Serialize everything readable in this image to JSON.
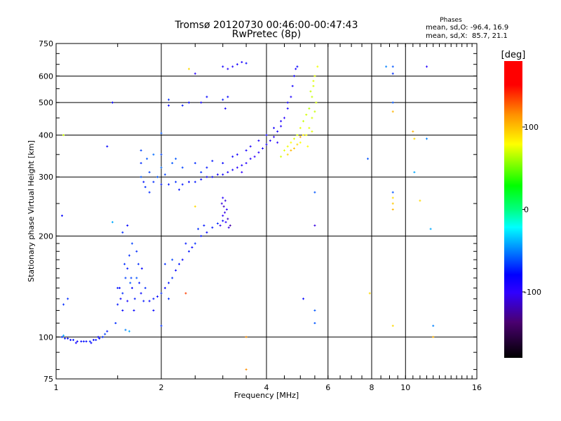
{
  "chart_data": {
    "type": "scatter",
    "title": "Tromsø 20120730 00:46:00-00:47:43",
    "subtitle": "RwPretec (8p)",
    "stats": {
      "heading": "Phases",
      "o_line": "mean, sd,O: -96.4, 16.9",
      "x_line": "mean, sd,X:  85.7, 21.1"
    },
    "xlabel": "Frequency [MHz]",
    "ylabel": "Stationary phase Virtual Height [km]",
    "xscale": "log",
    "yscale": "log",
    "xlim": [
      1,
      16
    ],
    "ylim": [
      75,
      750
    ],
    "xticks": [
      "1",
      "2",
      "4",
      "6",
      "8",
      "10",
      "16"
    ],
    "xtick_values": [
      1,
      2,
      4,
      6,
      8,
      10,
      16
    ],
    "yticks": [
      "75",
      "100",
      "200",
      "300",
      "400",
      "500",
      "600",
      "750"
    ],
    "ytick_values": [
      75,
      100,
      200,
      300,
      400,
      500,
      600,
      750
    ],
    "grid": true,
    "colorbar": {
      "label": "[deg]",
      "range": [
        -180,
        180
      ],
      "ticks": [
        "100",
        "0",
        "-100"
      ],
      "tick_values": [
        100,
        0,
        -100
      ]
    },
    "point_format": [
      "frequency_MHz",
      "height_km",
      "phase_deg"
    ],
    "points": [
      [
        1.04,
        100,
        -90
      ],
      [
        1.06,
        99,
        -95
      ],
      [
        1.08,
        99,
        -100
      ],
      [
        1.1,
        98,
        -100
      ],
      [
        1.12,
        98,
        -95
      ],
      [
        1.15,
        97,
        -105
      ],
      [
        1.18,
        97,
        -100
      ],
      [
        1.2,
        97,
        -95
      ],
      [
        1.22,
        97,
        -100
      ],
      [
        1.25,
        97,
        -90
      ],
      [
        1.28,
        98,
        -100
      ],
      [
        1.3,
        98,
        -95
      ],
      [
        1.33,
        99,
        -100
      ],
      [
        1.36,
        100,
        -90
      ],
      [
        1.38,
        102,
        -85
      ],
      [
        1.4,
        104,
        -95
      ],
      [
        1.05,
        101,
        -60
      ],
      [
        1.14,
        96,
        -110
      ],
      [
        1.26,
        96,
        -100
      ],
      [
        1.32,
        100,
        -100
      ],
      [
        1.48,
        110,
        -90
      ],
      [
        1.5,
        125,
        -95
      ],
      [
        1.52,
        140,
        -100
      ],
      [
        1.55,
        135,
        -90
      ],
      [
        1.58,
        150,
        -85
      ],
      [
        1.6,
        160,
        -95
      ],
      [
        1.62,
        175,
        -90
      ],
      [
        1.65,
        140,
        -100
      ],
      [
        1.68,
        130,
        -95
      ],
      [
        1.7,
        150,
        -80
      ],
      [
        1.72,
        165,
        -90
      ],
      [
        1.75,
        135,
        -100
      ],
      [
        1.78,
        128,
        -95
      ],
      [
        1.8,
        140,
        -90
      ],
      [
        1.55,
        120,
        -100
      ],
      [
        1.6,
        128,
        -110
      ],
      [
        1.65,
        190,
        -85
      ],
      [
        1.58,
        105,
        -70
      ],
      [
        1.62,
        104,
        -60
      ],
      [
        1.7,
        180,
        -90
      ],
      [
        1.5,
        140,
        -95
      ],
      [
        1.64,
        150,
        -85
      ],
      [
        1.76,
        160,
        -100
      ],
      [
        1.53,
        130,
        -105
      ],
      [
        1.57,
        165,
        -90
      ],
      [
        1.63,
        145,
        -80
      ],
      [
        1.67,
        120,
        -100
      ],
      [
        1.73,
        145,
        -95
      ],
      [
        1.85,
        128,
        -100
      ],
      [
        1.9,
        130,
        -95
      ],
      [
        1.95,
        132,
        -100
      ],
      [
        2.0,
        135,
        -90
      ],
      [
        2.05,
        140,
        -100
      ],
      [
        2.1,
        145,
        -95
      ],
      [
        2.15,
        150,
        -90
      ],
      [
        2.2,
        158,
        -100
      ],
      [
        2.25,
        165,
        -95
      ],
      [
        2.3,
        170,
        -100
      ],
      [
        2.4,
        180,
        -95
      ],
      [
        2.5,
        190,
        -90
      ],
      [
        2.6,
        200,
        -95
      ],
      [
        2.7,
        205,
        -100
      ],
      [
        2.8,
        212,
        -95
      ],
      [
        2.9,
        218,
        -90
      ],
      [
        3.0,
        222,
        -100
      ],
      [
        2.15,
        170,
        -85
      ],
      [
        2.05,
        165,
        -90
      ],
      [
        2.35,
        190,
        -95
      ],
      [
        2.55,
        210,
        -90
      ],
      [
        1.9,
        120,
        -100
      ],
      [
        2.1,
        130,
        -90
      ],
      [
        2.45,
        185,
        -100
      ],
      [
        2.65,
        215,
        -95
      ],
      [
        2.95,
        215,
        -130
      ],
      [
        3.0,
        230,
        -125
      ],
      [
        3.02,
        245,
        -135
      ],
      [
        3.05,
        255,
        -130
      ],
      [
        3.08,
        240,
        -125
      ],
      [
        3.1,
        225,
        -135
      ],
      [
        3.12,
        212,
        -130
      ],
      [
        3.0,
        260,
        -120
      ],
      [
        2.98,
        250,
        -130
      ],
      [
        3.15,
        215,
        -140
      ],
      [
        3.04,
        235,
        -130
      ],
      [
        3.06,
        220,
        -125
      ],
      [
        1.75,
        300,
        -80
      ],
      [
        1.75,
        330,
        -90
      ],
      [
        1.75,
        360,
        -85
      ],
      [
        1.78,
        290,
        -95
      ],
      [
        1.8,
        280,
        -90
      ],
      [
        1.82,
        340,
        -80
      ],
      [
        1.85,
        310,
        -85
      ],
      [
        1.9,
        290,
        -90
      ],
      [
        1.95,
        300,
        -80
      ],
      [
        2.0,
        285,
        -95
      ],
      [
        2.0,
        320,
        -75
      ],
      [
        2.05,
        305,
        -85
      ],
      [
        2.1,
        285,
        -95
      ],
      [
        2.15,
        330,
        -80
      ],
      [
        2.2,
        290,
        -90
      ],
      [
        2.3,
        285,
        -95
      ],
      [
        2.4,
        290,
        -100
      ],
      [
        2.5,
        290,
        -95
      ],
      [
        2.6,
        295,
        -100
      ],
      [
        2.7,
        300,
        -105
      ],
      [
        2.8,
        300,
        -100
      ],
      [
        2.9,
        305,
        -110
      ],
      [
        3.0,
        305,
        -105
      ],
      [
        3.1,
        310,
        -115
      ],
      [
        3.2,
        315,
        -110
      ],
      [
        3.3,
        320,
        -120
      ],
      [
        3.4,
        325,
        -115
      ],
      [
        3.5,
        330,
        -120
      ],
      [
        3.6,
        340,
        -115
      ],
      [
        3.7,
        345,
        -125
      ],
      [
        3.8,
        355,
        -120
      ],
      [
        3.9,
        365,
        -115
      ],
      [
        4.0,
        375,
        -110
      ],
      [
        4.1,
        385,
        -115
      ],
      [
        4.2,
        395,
        -120
      ],
      [
        4.3,
        410,
        -110
      ],
      [
        4.4,
        425,
        -115
      ],
      [
        4.5,
        450,
        -120
      ],
      [
        4.6,
        480,
        -110
      ],
      [
        4.7,
        520,
        -115
      ],
      [
        4.75,
        560,
        -110
      ],
      [
        4.8,
        600,
        -105
      ],
      [
        4.85,
        630,
        -110
      ],
      [
        4.9,
        640,
        -100
      ],
      [
        2.0,
        350,
        -85
      ],
      [
        2.2,
        340,
        -80
      ],
      [
        2.5,
        330,
        -90
      ],
      [
        2.8,
        335,
        -95
      ],
      [
        3.2,
        345,
        -105
      ],
      [
        3.5,
        360,
        -110
      ],
      [
        3.8,
        385,
        -115
      ],
      [
        4.0,
        400,
        -105
      ],
      [
        4.2,
        420,
        -110
      ],
      [
        4.4,
        440,
        -115
      ],
      [
        1.9,
        350,
        -75
      ],
      [
        2.3,
        320,
        -85
      ],
      [
        2.7,
        320,
        -95
      ],
      [
        3.0,
        330,
        -100
      ],
      [
        3.3,
        350,
        -110
      ],
      [
        3.6,
        370,
        -115
      ],
      [
        1.85,
        270,
        -90
      ],
      [
        2.25,
        275,
        -95
      ],
      [
        2.6,
        310,
        -90
      ],
      [
        3.4,
        310,
        -125
      ],
      [
        4.3,
        380,
        -120
      ],
      [
        4.6,
        500,
        -110
      ],
      [
        4.5,
        360,
        90
      ],
      [
        4.6,
        370,
        95
      ],
      [
        4.7,
        380,
        100
      ],
      [
        4.8,
        390,
        90
      ],
      [
        4.9,
        400,
        85
      ],
      [
        5.0,
        420,
        90
      ],
      [
        5.1,
        440,
        80
      ],
      [
        5.2,
        460,
        85
      ],
      [
        5.3,
        480,
        75
      ],
      [
        5.4,
        520,
        80
      ],
      [
        5.45,
        560,
        85
      ],
      [
        5.5,
        600,
        90
      ],
      [
        4.6,
        350,
        110
      ],
      [
        4.8,
        365,
        115
      ],
      [
        5.0,
        380,
        100
      ],
      [
        5.2,
        400,
        95
      ],
      [
        5.3,
        420,
        90
      ],
      [
        5.4,
        450,
        85
      ],
      [
        5.5,
        470,
        80
      ],
      [
        5.35,
        540,
        80
      ],
      [
        5.6,
        640,
        95
      ],
      [
        5.1,
        400,
        105
      ],
      [
        4.9,
        375,
        110
      ],
      [
        5.0,
        395,
        125
      ],
      [
        4.7,
        360,
        120
      ],
      [
        4.4,
        345,
        85
      ],
      [
        5.25,
        370,
        100
      ],
      [
        5.4,
        410,
        90
      ],
      [
        5.55,
        500,
        85
      ],
      [
        5.45,
        580,
        90
      ],
      [
        2.1,
        490,
        -100
      ],
      [
        2.1,
        510,
        -90
      ],
      [
        2.3,
        490,
        -95
      ],
      [
        2.4,
        500,
        -100
      ],
      [
        2.6,
        500,
        -110
      ],
      [
        2.7,
        520,
        -100
      ],
      [
        3.0,
        510,
        -95
      ],
      [
        3.1,
        520,
        -100
      ],
      [
        3.05,
        480,
        -110
      ],
      [
        3.0,
        640,
        -110
      ],
      [
        3.1,
        630,
        -120
      ],
      [
        3.2,
        640,
        -115
      ],
      [
        3.3,
        650,
        -110
      ],
      [
        3.4,
        660,
        -115
      ],
      [
        3.5,
        655,
        -100
      ],
      [
        2.5,
        610,
        -120
      ],
      [
        2.4,
        630,
        110
      ],
      [
        2.0,
        405,
        -80
      ],
      [
        9.2,
        640,
        -80
      ],
      [
        9.2,
        610,
        -90
      ],
      [
        9.2,
        500,
        -80
      ],
      [
        9.2,
        470,
        120
      ],
      [
        9.2,
        270,
        -80
      ],
      [
        9.2,
        260,
        110
      ],
      [
        9.2,
        250,
        115
      ],
      [
        9.2,
        240,
        120
      ],
      [
        9.2,
        108,
        110
      ],
      [
        10.5,
        410,
        120
      ],
      [
        10.6,
        390,
        110
      ],
      [
        11.5,
        390,
        -70
      ],
      [
        11.8,
        210,
        -60
      ],
      [
        12,
        108,
        -70
      ],
      [
        11.5,
        640,
        -120
      ],
      [
        8.8,
        640,
        -70
      ],
      [
        7.8,
        340,
        -80
      ],
      [
        5.5,
        270,
        -80
      ],
      [
        5.5,
        215,
        -130
      ],
      [
        5.5,
        120,
        -80
      ],
      [
        5.5,
        110,
        -80
      ],
      [
        5.1,
        130,
        -100
      ],
      [
        1.45,
        500,
        -100
      ],
      [
        1.4,
        370,
        -100
      ],
      [
        1.05,
        400,
        80
      ],
      [
        1.04,
        230,
        -100
      ],
      [
        1.05,
        125,
        -90
      ],
      [
        1.08,
        130,
        -90
      ],
      [
        1.45,
        220,
        -60
      ],
      [
        1.55,
        205,
        -90
      ],
      [
        2.0,
        108,
        -90
      ],
      [
        2.35,
        135,
        150
      ],
      [
        3.5,
        100,
        130
      ],
      [
        3.5,
        80,
        130
      ],
      [
        1.6,
        215,
        -100
      ],
      [
        10.6,
        310,
        -60
      ],
      [
        12,
        100,
        120
      ],
      [
        11,
        255,
        110
      ],
      [
        7.9,
        135,
        110
      ],
      [
        2.5,
        245,
        110
      ]
    ]
  }
}
